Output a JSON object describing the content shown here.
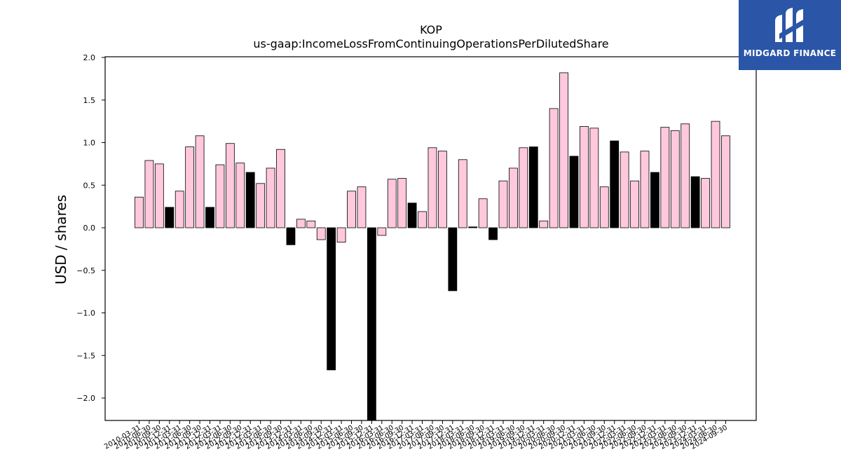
{
  "brand": {
    "name": "MIDGARD FINANCE",
    "bg_color": "#2b56a8",
    "icon": "midgard-m-logo-icon"
  },
  "chart_data": {
    "type": "bar",
    "title": "KOP",
    "subtitle": "us-gaap:IncomeLossFromContinuingOperationsPerDilutedShare",
    "ylabel": "USD / shares",
    "xlabel": "",
    "ylim": [
      -2.27,
      2.0
    ],
    "yticks": [
      2.0,
      1.5,
      1.0,
      0.5,
      0.0,
      -0.5,
      -1.0,
      -1.5,
      -2.0
    ],
    "ytick_labels": [
      "2.0",
      "1.5",
      "1.0",
      "0.5",
      "0.0",
      "−0.5",
      "−1.0",
      "−1.5",
      "−2.0"
    ],
    "grid": false,
    "legend": "none",
    "colors": {
      "pink": "#ffc8dc",
      "black": "#000000",
      "edge": "#000000"
    },
    "categories": [
      "2010-03-31",
      "2010-06-30",
      "2010-09-30",
      "2010-12-31",
      "2011-03-31",
      "2011-06-30",
      "2011-09-30",
      "2011-12-31",
      "2012-03-31",
      "2012-06-30",
      "2012-09-30",
      "2012-12-31",
      "2013-03-31",
      "2013-06-30",
      "2013-09-30",
      "2013-12-31",
      "2014-03-31",
      "2014-06-30",
      "2014-09-30",
      "2014-12-31",
      "2015-03-31",
      "2015-06-30",
      "2015-09-30",
      "2015-12-31",
      "2016-03-31",
      "2016-06-30",
      "2016-09-30",
      "2016-12-31",
      "2017-03-31",
      "2017-06-30",
      "2017-09-30",
      "2017-12-31",
      "2018-03-31",
      "2018-06-30",
      "2018-09-30",
      "2018-12-31",
      "2019-03-31",
      "2019-06-30",
      "2019-09-30",
      "2019-12-31",
      "2020-03-31",
      "2020-06-30",
      "2020-09-30",
      "2020-12-31",
      "2021-03-31",
      "2021-06-30",
      "2021-09-30",
      "2021-12-31",
      "2022-03-31",
      "2022-06-30",
      "2022-09-30",
      "2022-12-31",
      "2023-03-31",
      "2023-06-30",
      "2023-09-30",
      "2023-12-31",
      "2024-03-31",
      "2024-06-30",
      "2024-09-30"
    ],
    "values": [
      0.36,
      0.79,
      0.75,
      0.24,
      0.43,
      0.95,
      1.08,
      0.24,
      0.74,
      0.99,
      0.76,
      0.65,
      0.52,
      0.7,
      0.92,
      -0.2,
      0.1,
      0.08,
      -0.14,
      -1.67,
      -0.17,
      0.43,
      0.48,
      -2.27,
      -0.09,
      0.57,
      0.58,
      0.29,
      0.19,
      0.94,
      0.9,
      -0.74,
      0.8,
      0.01,
      0.34,
      -0.14,
      0.55,
      0.7,
      0.94,
      0.95,
      0.08,
      1.4,
      1.82,
      0.84,
      1.19,
      1.17,
      0.48,
      1.02,
      0.89,
      0.55,
      0.9,
      0.65,
      1.18,
      1.14,
      1.22,
      0.6,
      0.58,
      1.25,
      1.08
    ],
    "bar_colors": [
      "pink",
      "pink",
      "pink",
      "black",
      "pink",
      "pink",
      "pink",
      "black",
      "pink",
      "pink",
      "pink",
      "black",
      "pink",
      "pink",
      "pink",
      "black",
      "pink",
      "pink",
      "pink",
      "black",
      "pink",
      "pink",
      "pink",
      "black",
      "pink",
      "pink",
      "pink",
      "black",
      "pink",
      "pink",
      "pink",
      "black",
      "pink",
      "black",
      "pink",
      "black",
      "pink",
      "pink",
      "pink",
      "black",
      "pink",
      "pink",
      "pink",
      "black",
      "pink",
      "pink",
      "pink",
      "black",
      "pink",
      "pink",
      "pink",
      "black",
      "pink",
      "pink",
      "pink",
      "black",
      "pink",
      "pink",
      "pink"
    ]
  }
}
